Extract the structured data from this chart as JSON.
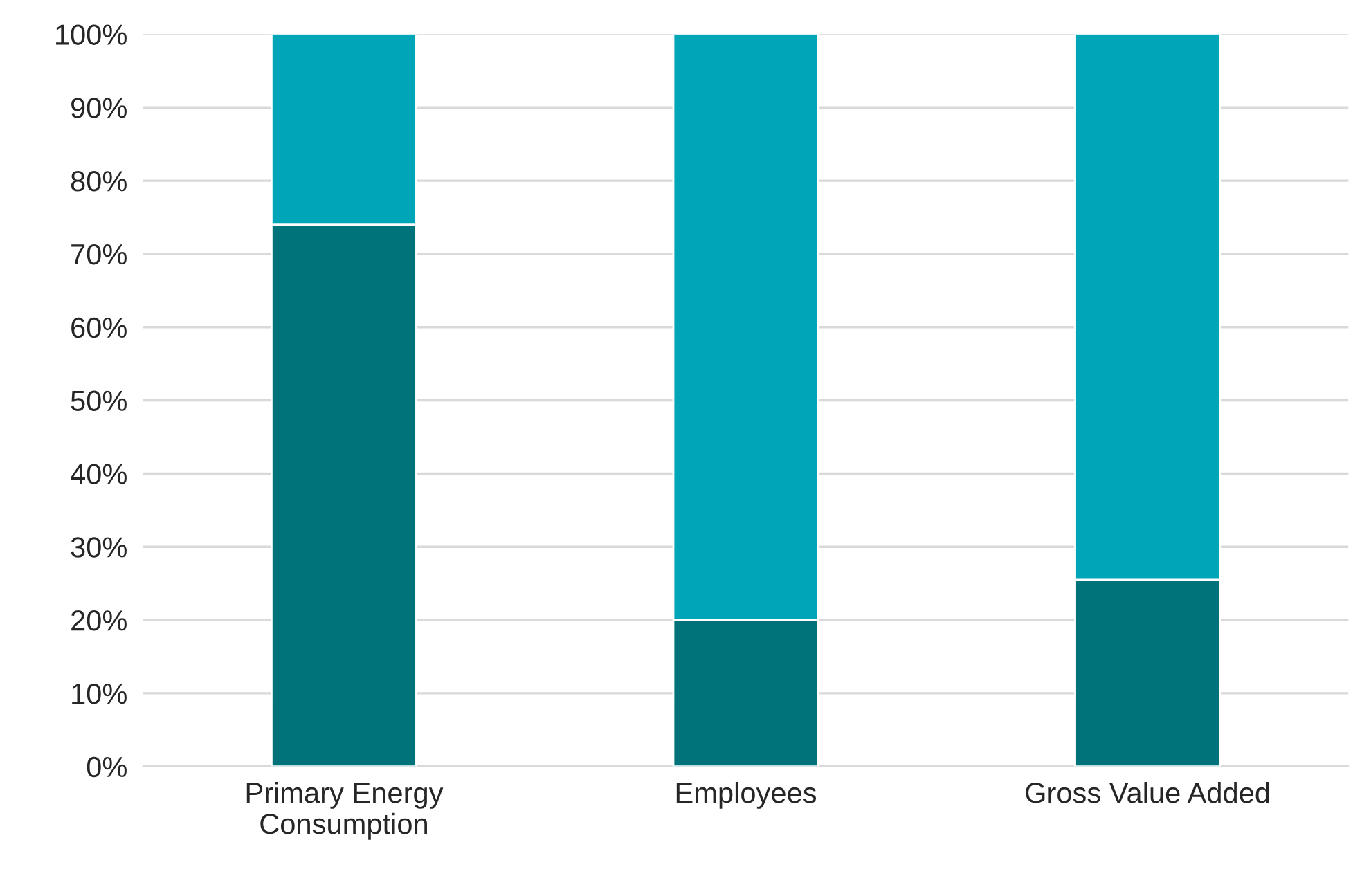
{
  "chart_data": {
    "type": "bar",
    "stacked": true,
    "categories": [
      "Primary Energy\nConsumption",
      "Employees",
      "Gross Value Added"
    ],
    "series": [
      {
        "color": "#00727a",
        "values": [
          74,
          20,
          25.5
        ]
      },
      {
        "color": "#00a6b8",
        "values": [
          26,
          80,
          74.5
        ]
      }
    ],
    "ylim": [
      0,
      100
    ],
    "yticks": [
      {
        "value": 0,
        "label": "0%"
      },
      {
        "value": 10,
        "label": "10%"
      },
      {
        "value": 20,
        "label": "20%"
      },
      {
        "value": 30,
        "label": "30%"
      },
      {
        "value": 40,
        "label": "40%"
      },
      {
        "value": 50,
        "label": "50%"
      },
      {
        "value": 60,
        "label": "60%"
      },
      {
        "value": 70,
        "label": "70%"
      },
      {
        "value": 80,
        "label": "80%"
      },
      {
        "value": 90,
        "label": "90%"
      },
      {
        "value": 100,
        "label": "100%"
      }
    ],
    "grid": "y",
    "legend": false
  }
}
